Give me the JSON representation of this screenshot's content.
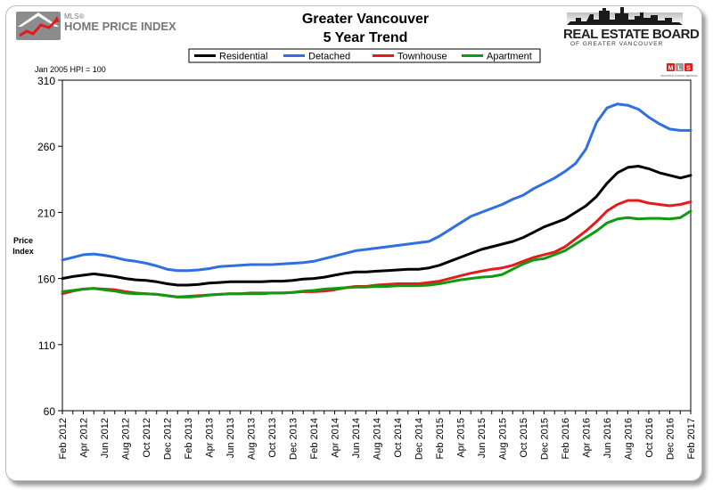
{
  "header": {
    "mls_logo_small": "MLS®",
    "mls_logo_main": "HOME PRICE INDEX",
    "reb_logo_main": "REAL ESTATE BOARD",
    "reb_logo_sub": "OF GREATER VANCOUVER",
    "badge_letters": [
      "M",
      "L",
      "S"
    ],
    "badge_caption": "MULTIPLE LISTING SERVICE"
  },
  "chart_data": {
    "type": "line",
    "title": "Greater Vancouver",
    "subtitle": "5 Year Trend",
    "note": "Jan 2005 HPI = 100",
    "ylabel": "Price Index",
    "xlabel": "",
    "ylim": [
      60,
      310
    ],
    "yticks": [
      60,
      110,
      160,
      210,
      260,
      310
    ],
    "legend_position": "top-center",
    "grid": false,
    "x": [
      "Feb 2012",
      "Mar 2012",
      "Apr 2012",
      "May 2012",
      "Jun 2012",
      "Jul 2012",
      "Aug 2012",
      "Sep 2012",
      "Oct 2012",
      "Nov 2012",
      "Dec 2012",
      "Jan 2013",
      "Feb 2013",
      "Mar 2013",
      "Apr 2013",
      "May 2013",
      "Jun 2013",
      "Jul 2013",
      "Aug 2013",
      "Sep 2013",
      "Oct 2013",
      "Nov 2013",
      "Dec 2013",
      "Jan 2014",
      "Feb 2014",
      "Mar 2014",
      "Apr 2014",
      "May 2014",
      "Jun 2014",
      "Jul 2014",
      "Aug 2014",
      "Sep 2014",
      "Oct 2014",
      "Nov 2014",
      "Dec 2014",
      "Jan 2015",
      "Feb 2015",
      "Mar 2015",
      "Apr 2015",
      "May 2015",
      "Jun 2015",
      "Jul 2015",
      "Aug 2015",
      "Sep 2015",
      "Oct 2015",
      "Nov 2015",
      "Dec 2015",
      "Jan 2016",
      "Feb 2016",
      "Mar 2016",
      "Apr 2016",
      "May 2016",
      "Jun 2016",
      "Jul 2016",
      "Aug 2016",
      "Sep 2016",
      "Oct 2016",
      "Nov 2016",
      "Dec 2016",
      "Jan 2017",
      "Feb 2017"
    ],
    "xticks": [
      "Feb 2012",
      "Apr 2012",
      "Jun 2012",
      "Aug 2012",
      "Oct 2012",
      "Dec 2012",
      "Feb 2013",
      "Apr 2013",
      "Jun 2013",
      "Aug 2013",
      "Oct 2013",
      "Dec 2013",
      "Feb 2014",
      "Apr 2014",
      "Jun 2014",
      "Aug 2014",
      "Oct 2014",
      "Dec 2014",
      "Feb 2015",
      "Apr 2015",
      "Jun 2015",
      "Aug 2015",
      "Oct 2015",
      "Dec 2015",
      "Feb 2016",
      "Apr 2016",
      "Jun 2016",
      "Aug 2016",
      "Oct 2016",
      "Dec 2016",
      "Feb 2017"
    ],
    "series": [
      {
        "name": "Residential",
        "color": "#000000",
        "values": [
          160,
          161.5,
          162.5,
          163.5,
          162.5,
          161.5,
          160,
          159,
          158.5,
          157.5,
          156,
          155,
          155,
          155.5,
          156.5,
          157,
          157.5,
          157.5,
          157.5,
          157.5,
          158,
          158,
          158.5,
          159.5,
          160,
          161,
          162.5,
          164,
          165,
          165,
          165.5,
          166,
          166.5,
          167,
          167,
          168,
          170,
          173,
          176,
          179,
          182,
          184,
          186,
          188,
          191,
          195,
          199,
          202,
          205,
          210,
          215,
          222,
          232,
          240,
          244,
          245,
          243,
          240,
          238,
          236,
          238
        ]
      },
      {
        "name": "Detached",
        "color": "#2f6fe0",
        "values": [
          174,
          176,
          178,
          178.5,
          177.5,
          176,
          174,
          173,
          171.5,
          169.5,
          167,
          166,
          166,
          166.5,
          167.5,
          169,
          169.5,
          170,
          170.5,
          170.5,
          170.5,
          171,
          171.5,
          172,
          173,
          175,
          177,
          179,
          181,
          182,
          183,
          184,
          185,
          186,
          187,
          188,
          192,
          197,
          202,
          207,
          210,
          213,
          216,
          220,
          223,
          228,
          232,
          236,
          241,
          247,
          258,
          278,
          289,
          292,
          291,
          288,
          282,
          277,
          273,
          272,
          272
        ]
      },
      {
        "name": "Townhouse",
        "color": "#e41a1c",
        "values": [
          148.5,
          150.5,
          152,
          152.5,
          152,
          151.5,
          150,
          149,
          148.5,
          148,
          147,
          146,
          146.5,
          147,
          147.5,
          148,
          148.5,
          148.5,
          149,
          149,
          149,
          149,
          149.5,
          150,
          150,
          150.5,
          151.5,
          153,
          154,
          154,
          155,
          155.5,
          156,
          156,
          156,
          157,
          158,
          160,
          162,
          164,
          165.5,
          167,
          168,
          170,
          173,
          176,
          178,
          180,
          184,
          190,
          196,
          203,
          211,
          216,
          219,
          219,
          217,
          216,
          215,
          216,
          218
        ]
      },
      {
        "name": "Apartment",
        "color": "#119a11",
        "values": [
          150,
          151,
          152,
          152.5,
          151.5,
          150.5,
          149,
          148.5,
          148.5,
          148,
          147,
          146,
          146,
          146.5,
          147.5,
          148,
          148.5,
          148.5,
          148.5,
          148.5,
          149,
          149,
          149.5,
          150.5,
          151,
          152,
          152.5,
          153,
          153.5,
          153.5,
          154,
          154,
          154.5,
          154.5,
          154.5,
          155,
          156,
          157.5,
          159,
          160,
          161,
          161.5,
          163,
          167,
          171,
          174,
          175,
          178,
          181,
          186,
          191,
          196,
          202,
          205,
          206,
          205,
          205.5,
          205.5,
          205,
          206,
          211
        ]
      }
    ]
  }
}
